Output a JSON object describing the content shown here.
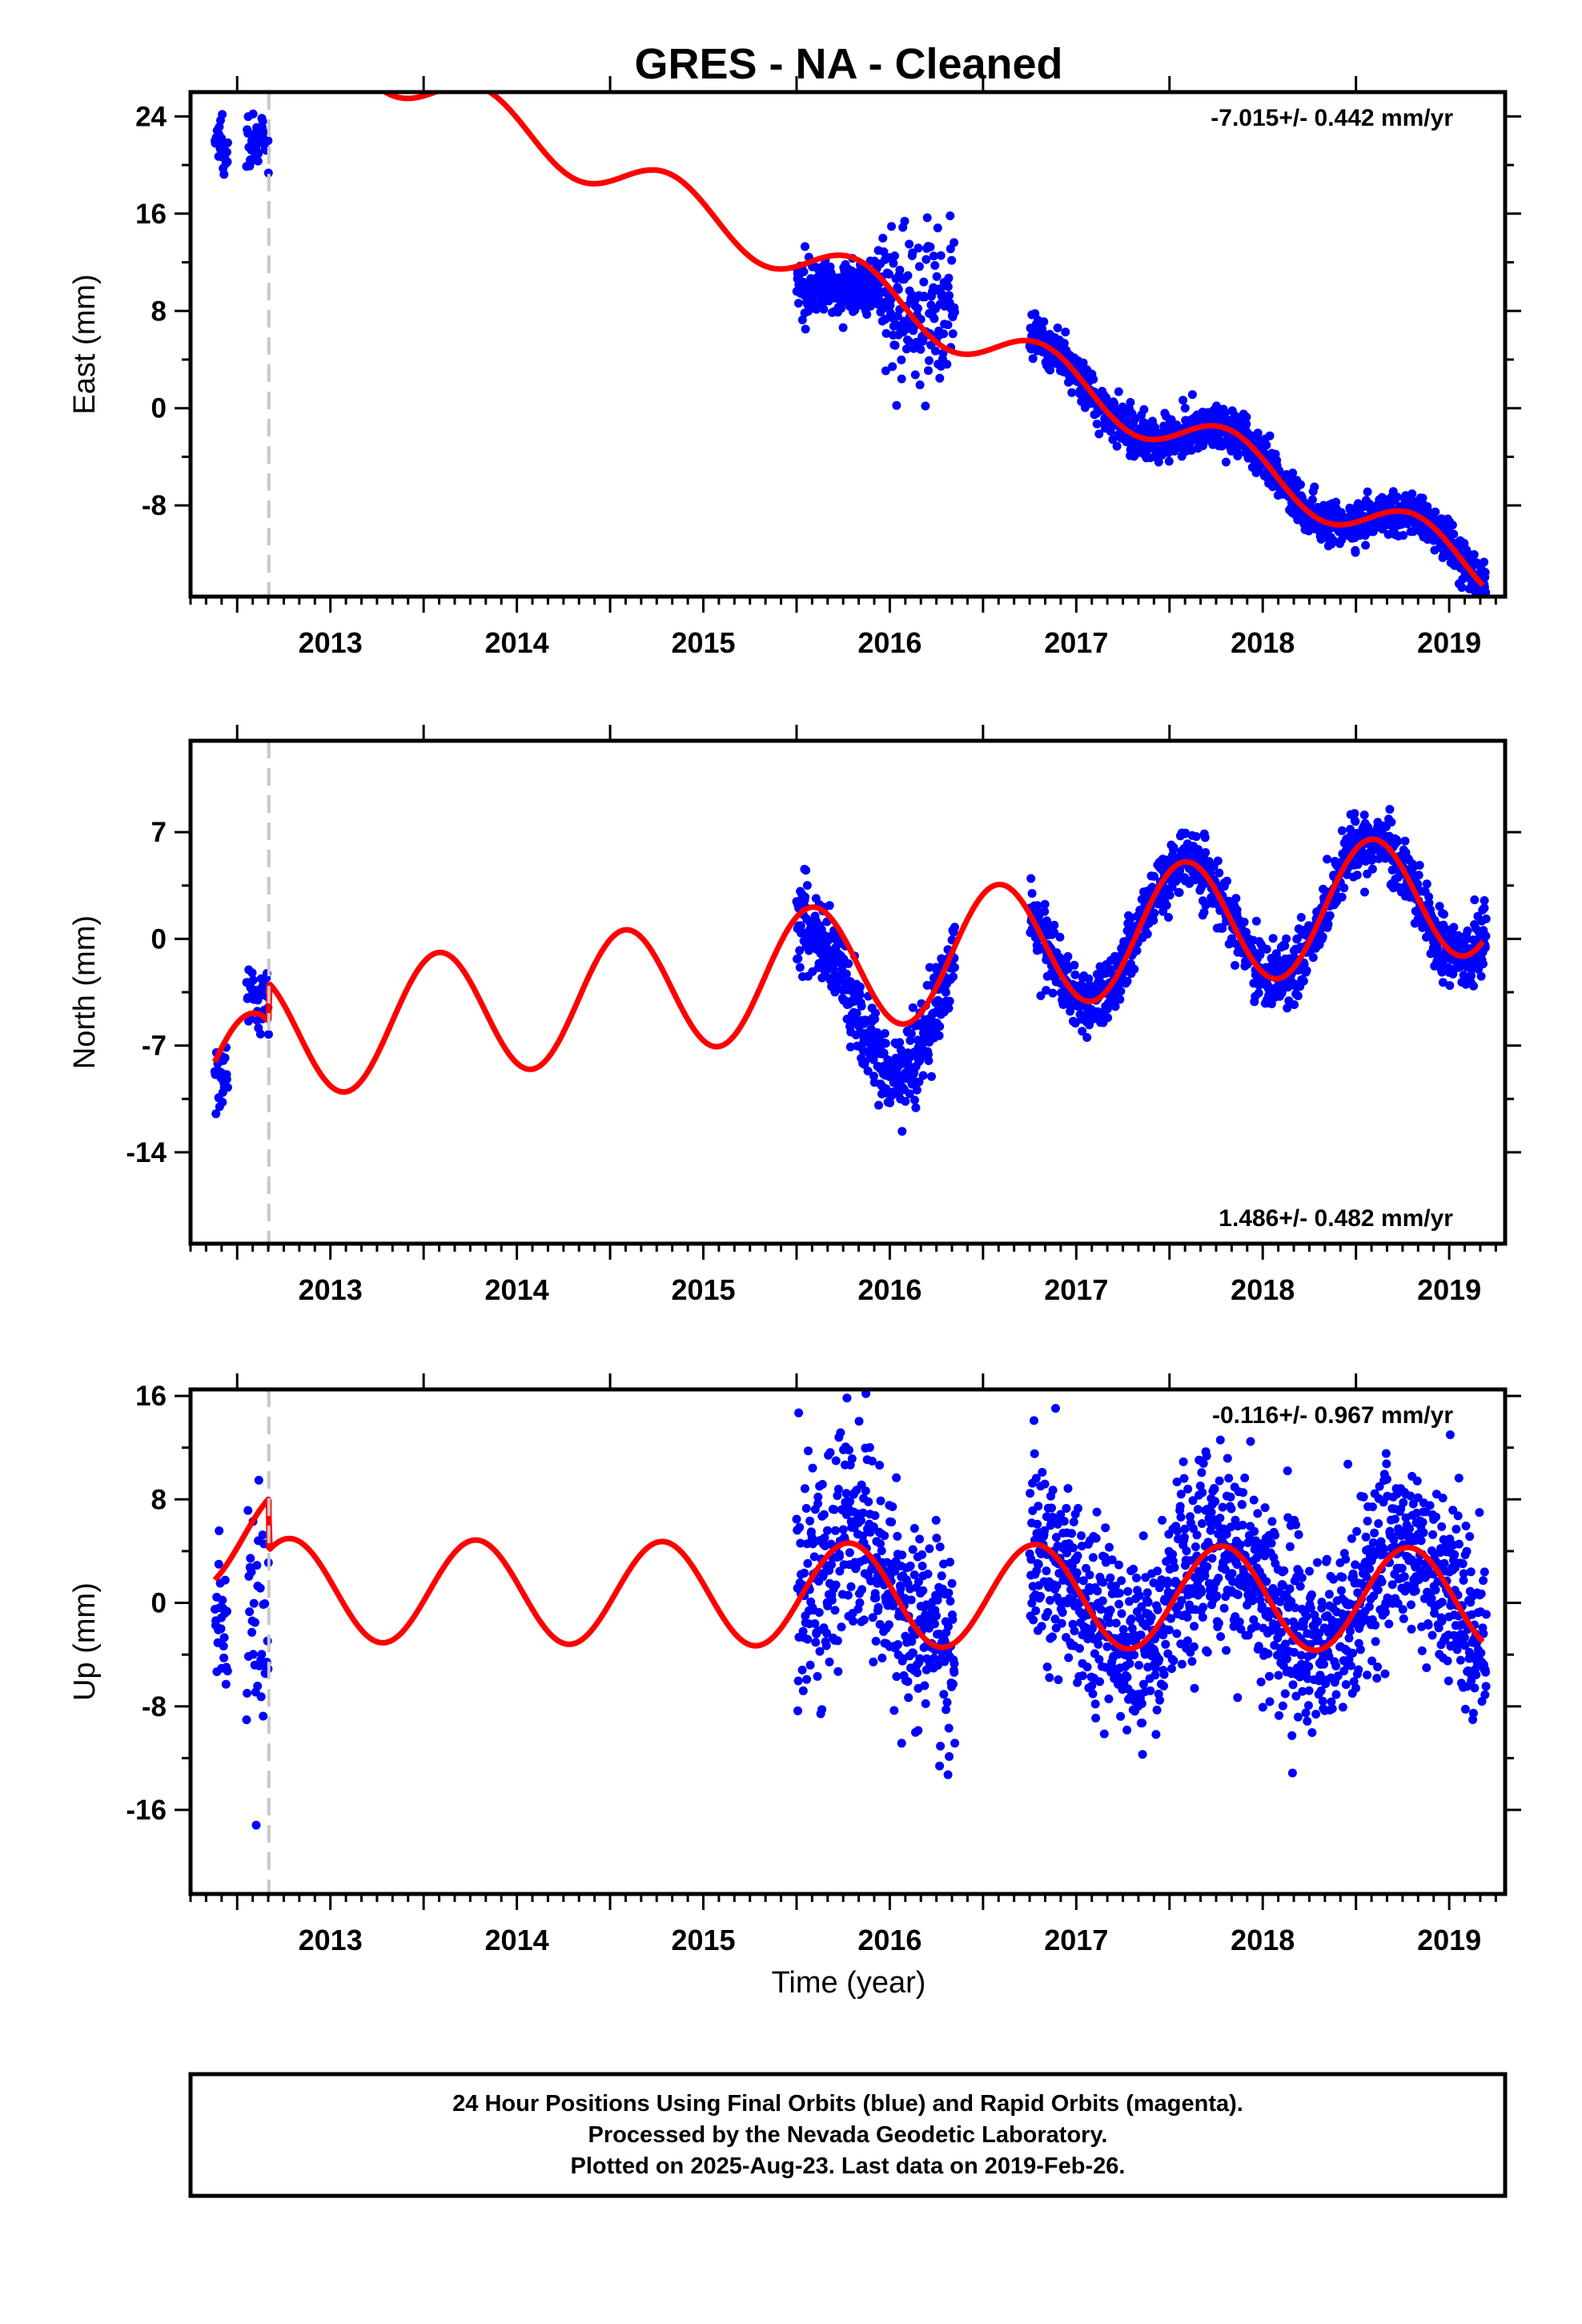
{
  "title": "GRES  - NA - Cleaned",
  "footer": {
    "lines": [
      "24 Hour Positions Using Final Orbits (blue) and Rapid Orbits (magenta).",
      "Processed by the Nevada Geodetic Laboratory.",
      "Plotted on 2025-Aug-23. Last data on 2019-Feb-26."
    ]
  },
  "colors": {
    "data_points": "#0000ff",
    "model_curve": "#ff0000",
    "dashed_line": "#c8c8c8",
    "frame": "#000000"
  },
  "chart_data": [
    {
      "type": "scatter",
      "panel": "east",
      "ylabel": "East (mm)",
      "xlabel": "",
      "rate_label": "-7.015+/- 0.442 mm/yr",
      "rate_position": "top-right",
      "xlim": [
        2012.25,
        2019.3
      ],
      "ylim": [
        -15.5,
        26
      ],
      "yticks": [
        24,
        16,
        8,
        0,
        -8
      ],
      "xticks": [
        2013,
        2014,
        2015,
        2016,
        2017,
        2018,
        2019
      ],
      "xtick_labels": [
        "2013",
        "2014",
        "2015",
        "2016",
        "2017",
        "2018",
        "2019"
      ],
      "dashed_vline_x": 2012.67,
      "model": {
        "rate_mm_per_yr": -7.015,
        "value_at_2016": 9.0,
        "annual_amplitude": 2.0,
        "annual_phase_year": 2015.82,
        "offset_at_dashed_line": 8.5
      },
      "series": [
        {
          "kind": "scatter",
          "segments": [
            {
              "x_start": 2012.38,
              "x_end": 2012.45,
              "center": 22.0,
              "noise": 1.1,
              "count": 30
            },
            {
              "x_start": 2012.55,
              "x_end": 2012.67,
              "center": 21.8,
              "noise": 1.4,
              "count": 40
            },
            {
              "x_start": 2015.5,
              "x_end": 2015.95,
              "center": 10.0,
              "noise": 1.0,
              "count": 260
            },
            {
              "x_start": 2015.95,
              "x_end": 2016.35,
              "center": 8.5,
              "noise": 3.0,
              "count": 170
            },
            {
              "x_start": 2016.75,
              "x_end": 2019.2,
              "center": "model",
              "noise": 0.9,
              "count": 1300
            }
          ]
        },
        {
          "kind": "line",
          "source": "model"
        }
      ]
    },
    {
      "type": "scatter",
      "panel": "north",
      "ylabel": "North (mm)",
      "xlabel": "",
      "rate_label": "1.486+/- 0.482 mm/yr",
      "rate_position": "bottom-right",
      "xlim": [
        2012.25,
        2019.3
      ],
      "ylim": [
        -20,
        13
      ],
      "yticks": [
        7,
        0,
        -7,
        -14
      ],
      "xticks": [
        2013,
        2014,
        2015,
        2016,
        2017,
        2018,
        2019
      ],
      "xtick_labels": [
        "2013",
        "2014",
        "2015",
        "2016",
        "2017",
        "2018",
        "2019"
      ],
      "dashed_vline_x": 2012.67,
      "model": {
        "rate_mm_per_yr": 1.486,
        "value_at_2016": -1.5,
        "annual_amplitude": 4.2,
        "annual_phase_year": 2015.58,
        "offset_at_dashed_line": -2.5
      },
      "series": [
        {
          "kind": "scatter",
          "segments": [
            {
              "x_start": 2012.38,
              "x_end": 2012.45,
              "center": -8.8,
              "noise": 1.0,
              "count": 25
            },
            {
              "x_start": 2012.55,
              "x_end": 2012.67,
              "center": -3.8,
              "noise": 1.2,
              "count": 40
            },
            {
              "x_start": 2015.5,
              "x_end": 2016.35,
              "center": "model-4",
              "noise": 1.4,
              "count": 430
            },
            {
              "x_start": 2016.75,
              "x_end": 2019.2,
              "center": "model",
              "noise": 1.0,
              "count": 1300
            }
          ]
        },
        {
          "kind": "line",
          "source": "model"
        }
      ]
    },
    {
      "type": "scatter",
      "panel": "up",
      "ylabel": "Up (mm)",
      "xlabel": "Time (year)",
      "rate_label": "-0.116+/- 0.967 mm/yr",
      "rate_position": "top-right",
      "xlim": [
        2012.25,
        2019.3
      ],
      "ylim": [
        -22.5,
        16.5
      ],
      "yticks": [
        16,
        8,
        0,
        -8,
        -16
      ],
      "xticks": [
        2013,
        2014,
        2015,
        2016,
        2017,
        2018,
        2019
      ],
      "xtick_labels": [
        "2013",
        "2014",
        "2015",
        "2016",
        "2017",
        "2018",
        "2019"
      ],
      "dashed_vline_x": 2012.67,
      "model": {
        "rate_mm_per_yr": -0.116,
        "value_at_2016": 0.6,
        "annual_amplitude": 4.0,
        "annual_phase_year": 2015.78,
        "offset_at_dashed_line": 4.0
      },
      "series": [
        {
          "kind": "scatter",
          "segments": [
            {
              "x_start": 2012.38,
              "x_end": 2012.45,
              "center": -2.0,
              "noise": 3.5,
              "count": 25
            },
            {
              "x_start": 2012.55,
              "x_end": 2012.67,
              "center": -1.0,
              "noise": 4.5,
              "count": 40
            },
            {
              "x_start": 2015.5,
              "x_end": 2016.35,
              "center": "model",
              "noise": 4.2,
              "count": 430
            },
            {
              "x_start": 2016.75,
              "x_end": 2019.2,
              "center": "model",
              "noise": 3.6,
              "count": 1300
            }
          ]
        },
        {
          "kind": "line",
          "source": "model"
        }
      ]
    }
  ]
}
